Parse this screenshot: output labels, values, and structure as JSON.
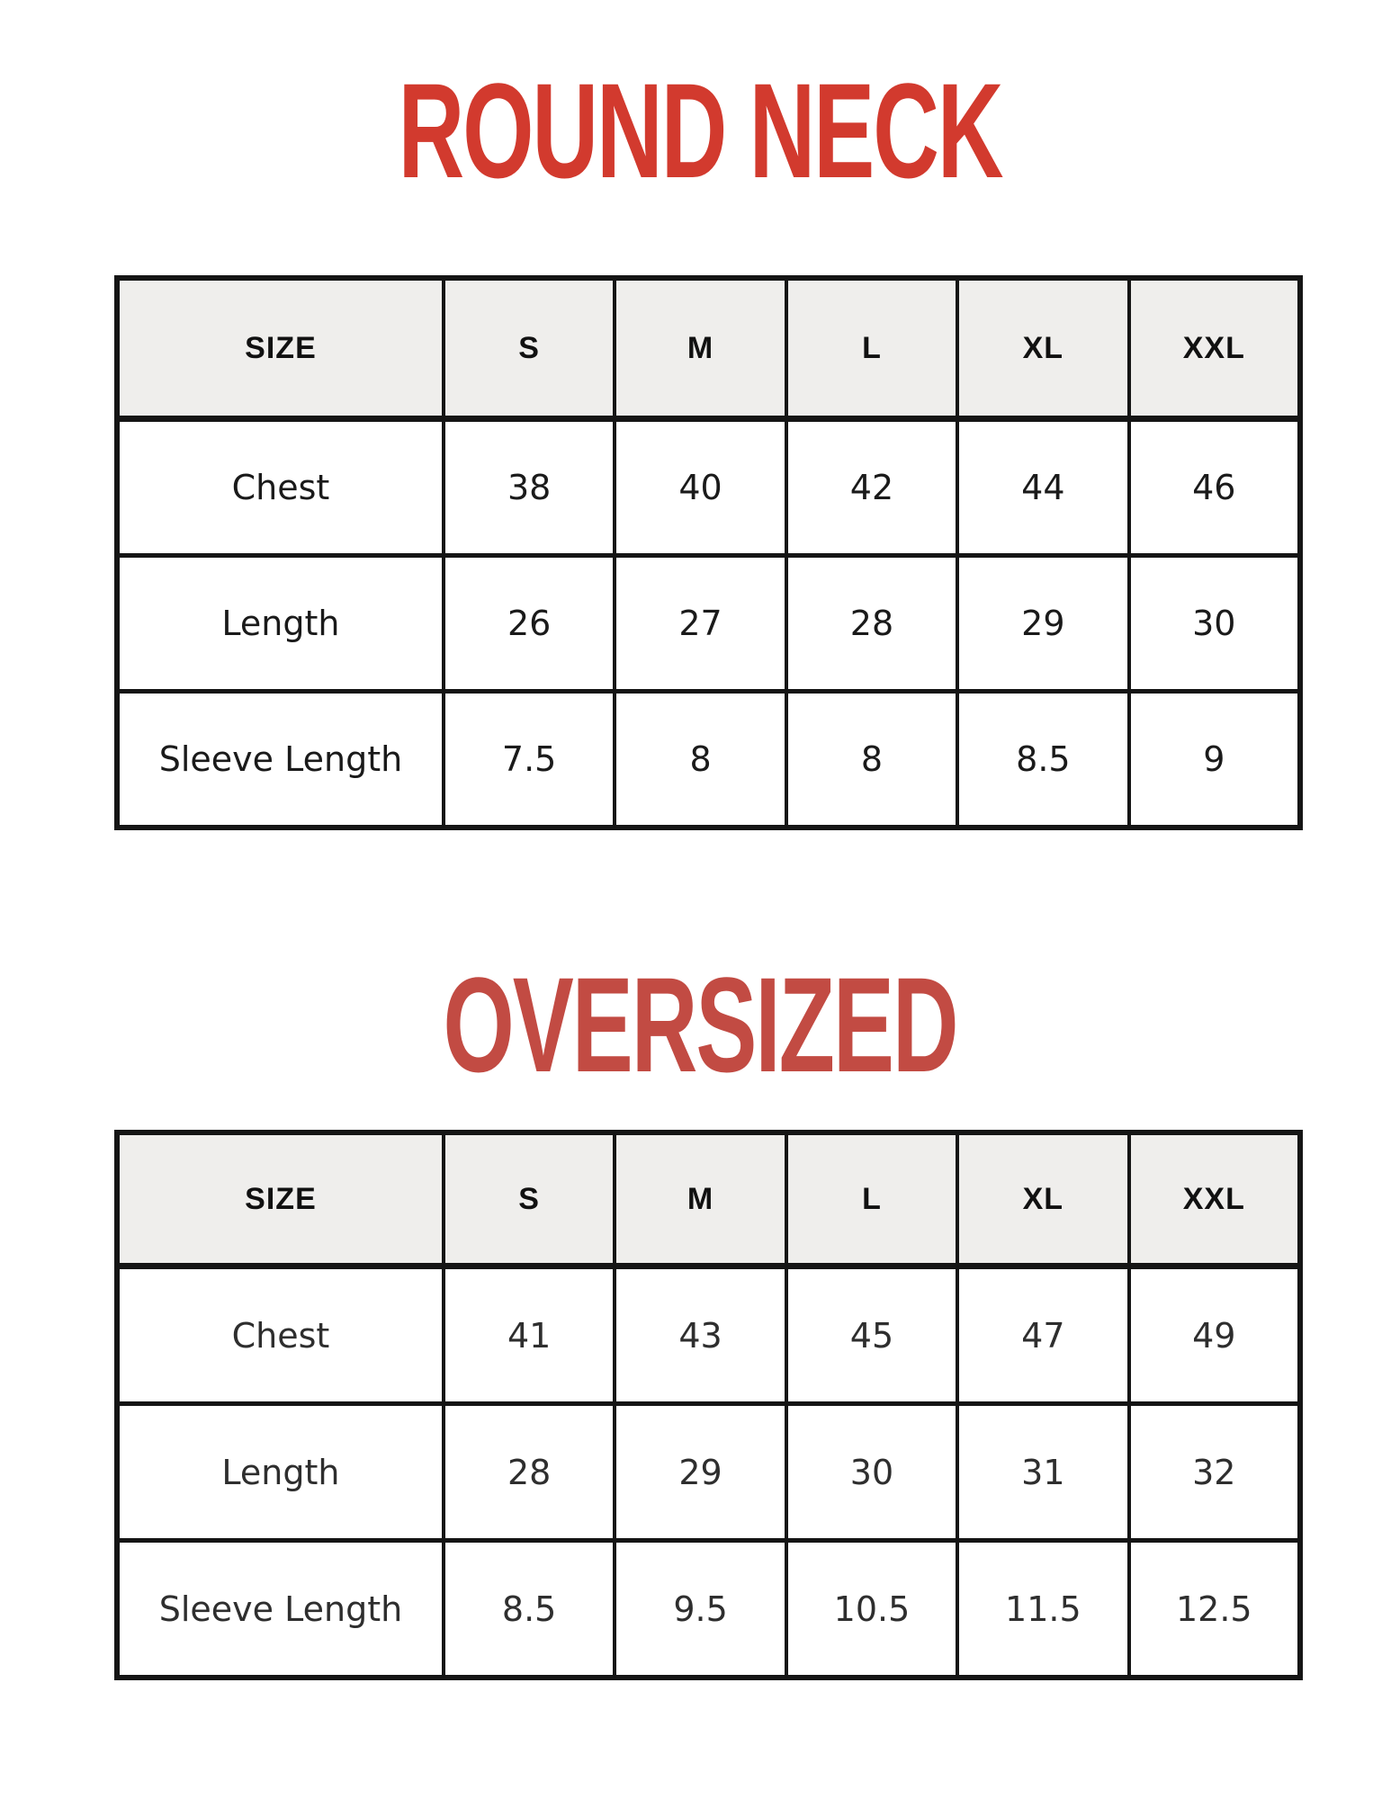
{
  "styles": {
    "header_bg": "#efeeec",
    "border_color": "#151515",
    "round_neck_title_color": "#d23a2e",
    "oversized_title_color": "#c24b43"
  },
  "round_neck": {
    "title": "ROUND NECK",
    "table": {
      "headers": [
        "SIZE",
        "S",
        "M",
        "L",
        "XL",
        "XXL"
      ],
      "rows": [
        {
          "label": "Chest",
          "values": [
            "38",
            "40",
            "42",
            "44",
            "46"
          ]
        },
        {
          "label": "Length",
          "values": [
            "26",
            "27",
            "28",
            "29",
            "30"
          ]
        },
        {
          "label": "Sleeve Length",
          "values": [
            "7.5",
            "8",
            "8",
            "8.5",
            "9"
          ]
        }
      ]
    }
  },
  "oversized": {
    "title": "OVERSIZED",
    "table": {
      "headers": [
        "SIZE",
        "S",
        "M",
        "L",
        "XL",
        "XXL"
      ],
      "rows": [
        {
          "label": "Chest",
          "values": [
            "41",
            "43",
            "45",
            "47",
            "49"
          ]
        },
        {
          "label": "Length",
          "values": [
            "28",
            "29",
            "30",
            "31",
            "32"
          ]
        },
        {
          "label": "Sleeve Length",
          "values": [
            "8.5",
            "9.5",
            "10.5",
            "11.5",
            "12.5"
          ]
        }
      ]
    }
  }
}
